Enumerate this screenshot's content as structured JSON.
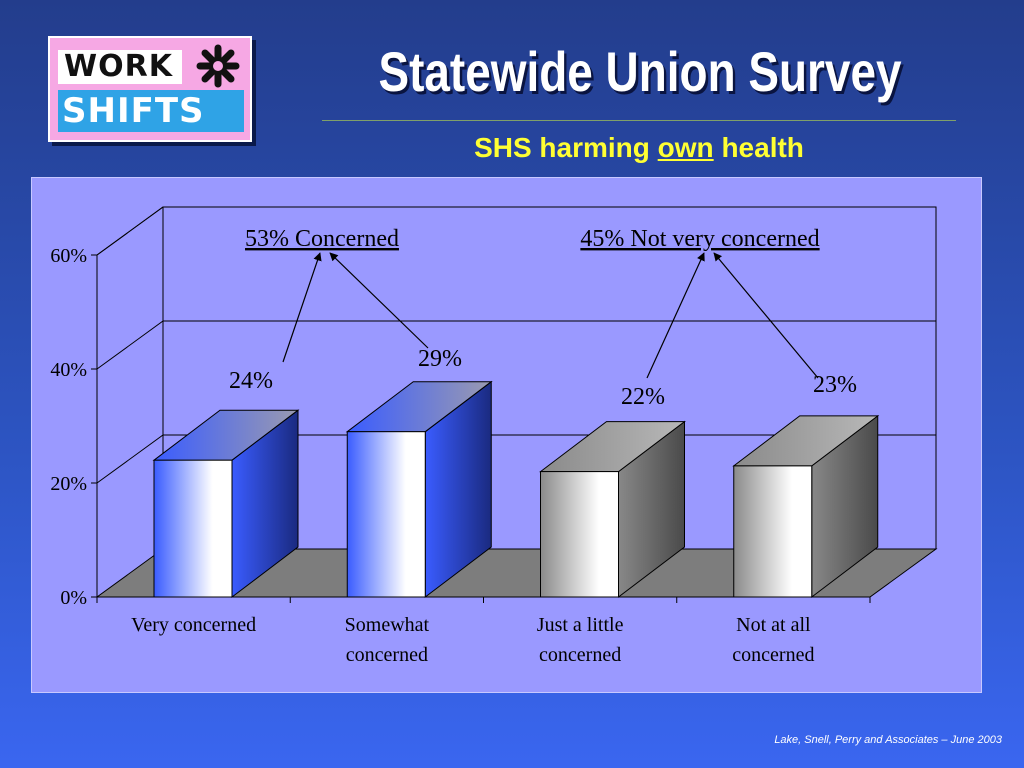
{
  "logo": {
    "line1": "WORK",
    "line2": "SHIFTS"
  },
  "header": {
    "title": "Statewide Union Survey",
    "subtitle_before": "SHS harming ",
    "subtitle_emph": "own",
    "subtitle_after": " health"
  },
  "chart_data": {
    "type": "bar",
    "categories": [
      [
        "Very concerned"
      ],
      [
        "Somewhat",
        "concerned"
      ],
      [
        "Just a little",
        "concerned"
      ],
      [
        "Not at all",
        "concerned"
      ]
    ],
    "values": [
      24,
      29,
      22,
      23
    ],
    "value_labels": [
      "24%",
      "29%",
      "22%",
      "23%"
    ],
    "ylim": [
      0,
      60
    ],
    "yticks": [
      0,
      20,
      40,
      60
    ],
    "ytick_labels": [
      "0%",
      "20%",
      "40%",
      "60%"
    ],
    "grid": true,
    "annotations": [
      {
        "text": "53% Concerned",
        "bars": [
          0,
          1
        ]
      },
      {
        "text": "45% Not very concerned",
        "bars": [
          2,
          3
        ]
      }
    ],
    "colors": {
      "concerned_front": [
        "#3a5cff",
        "#ffffff"
      ],
      "not_concerned_front": [
        "#8a8a8a",
        "#ffffff"
      ],
      "floor": "#7d7d7d",
      "panel": "#9a99ff"
    }
  },
  "footer": {
    "credit": "Lake, Snell, Perry and Associates – June 2003"
  }
}
